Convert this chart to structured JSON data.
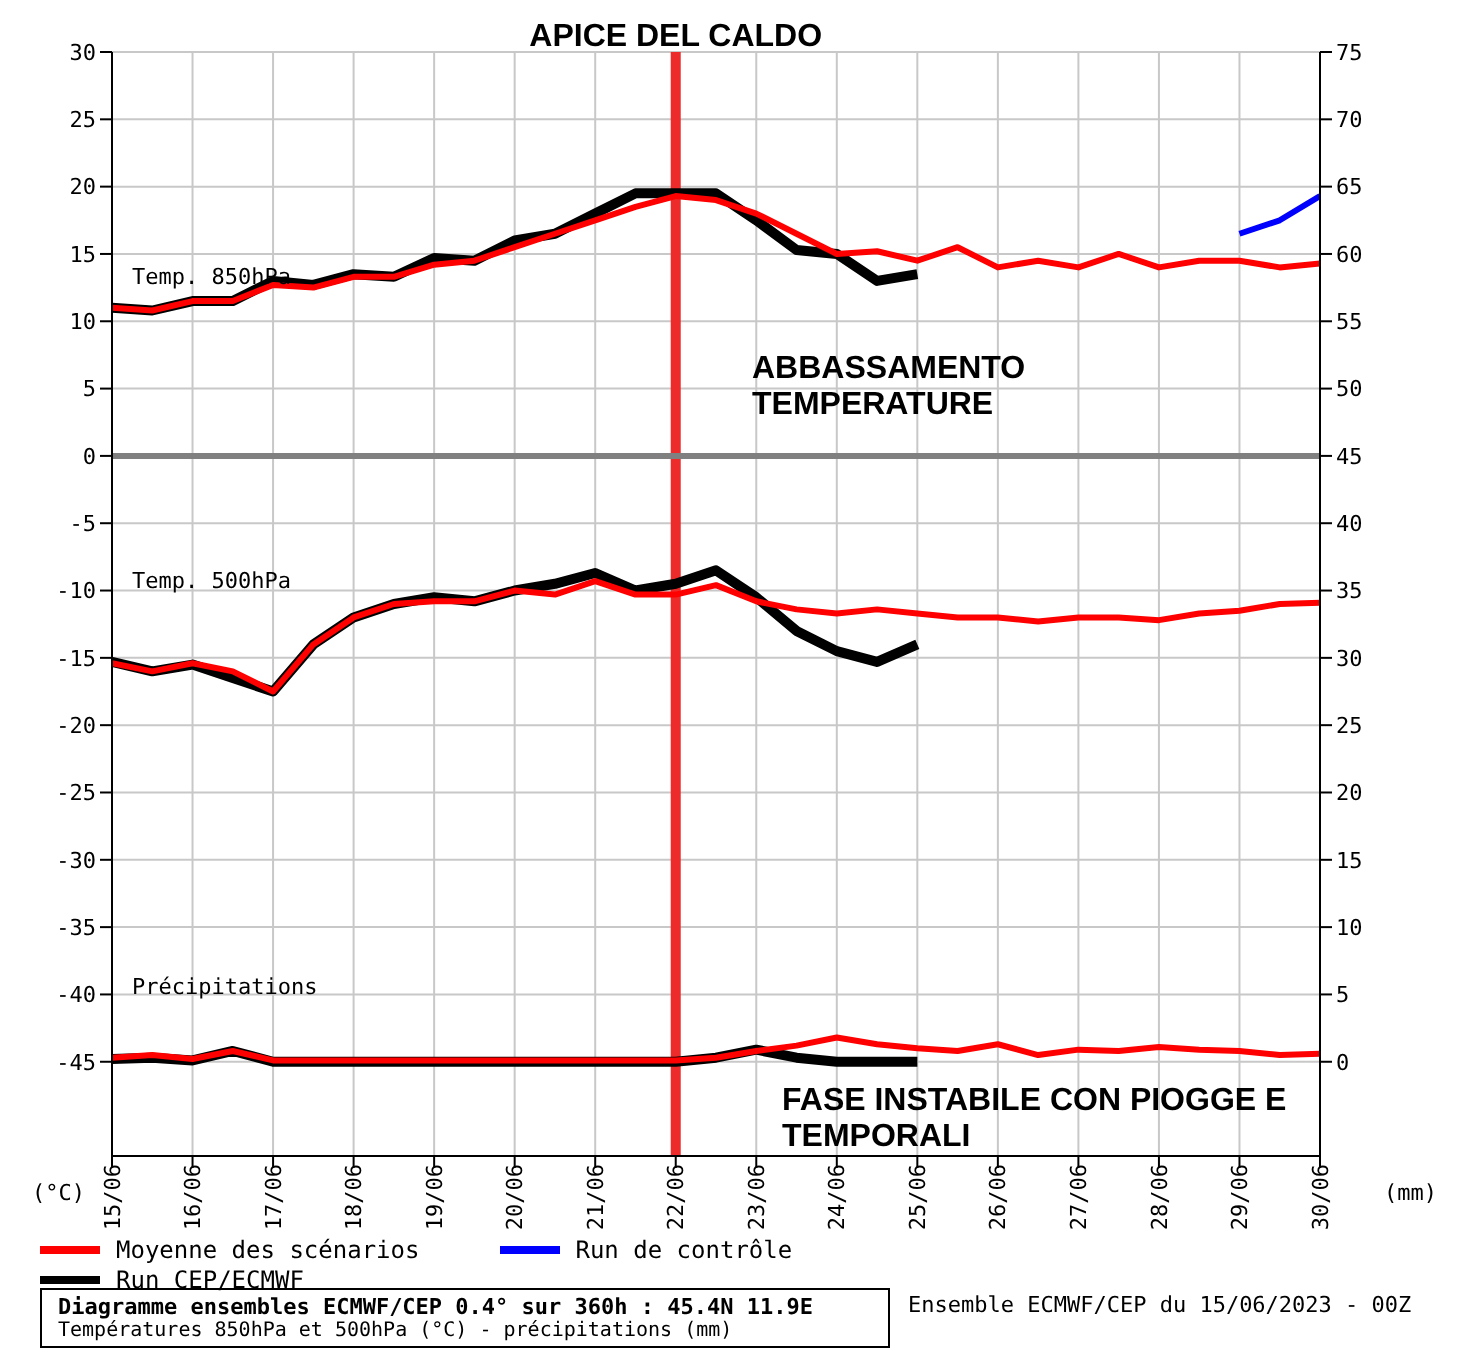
{
  "chart_data": {
    "type": "line",
    "x": [
      "2023-06-15T00:00",
      "2023-06-15T12:00",
      "2023-06-16T00:00",
      "2023-06-16T12:00",
      "2023-06-17T00:00",
      "2023-06-17T12:00",
      "2023-06-18T00:00",
      "2023-06-18T12:00",
      "2023-06-19T00:00",
      "2023-06-19T12:00",
      "2023-06-20T00:00",
      "2023-06-20T12:00",
      "2023-06-21T00:00",
      "2023-06-21T12:00",
      "2023-06-22T00:00",
      "2023-06-22T12:00",
      "2023-06-23T00:00",
      "2023-06-23T12:00",
      "2023-06-24T00:00",
      "2023-06-24T12:00",
      "2023-06-25T00:00",
      "2023-06-25T12:00",
      "2023-06-26T00:00",
      "2023-06-26T12:00",
      "2023-06-27T00:00",
      "2023-06-27T12:00",
      "2023-06-28T00:00",
      "2023-06-28T12:00",
      "2023-06-29T00:00",
      "2023-06-29T12:00",
      "2023-06-30T00:00"
    ],
    "series": [
      {
        "name": "Moyenne des scénarios",
        "color": "#ff0000",
        "values": [
          11,
          10.8,
          11.5,
          11.5,
          12.7,
          12.5,
          13.3,
          13.3,
          14.2,
          14.5,
          15.5,
          16.5,
          17.5,
          18.5,
          19.3,
          19,
          18,
          16.5,
          15,
          15.2,
          14.5,
          15.5,
          14,
          14.5,
          14,
          15,
          14,
          14.5,
          14.5,
          14,
          14.3
        ]
      },
      {
        "name": "Run de contrôle",
        "color": "#0000ff",
        "values": [
          null,
          null,
          null,
          null,
          null,
          null,
          null,
          null,
          null,
          null,
          null,
          null,
          null,
          null,
          null,
          null,
          null,
          null,
          null,
          null,
          null,
          null,
          null,
          null,
          null,
          null,
          null,
          null,
          16.5,
          17.5,
          19.3
        ]
      },
      {
        "name": "Run CEP/ECMWF",
        "color": "#000000",
        "values": [
          11,
          10.8,
          11.5,
          11.5,
          13,
          12.7,
          13.5,
          13.3,
          14.7,
          14.5,
          16,
          16.5,
          18,
          19.5,
          19.5,
          19.5,
          17.5,
          15.3,
          15,
          13,
          13.5,
          null,
          null,
          null,
          null,
          null,
          null,
          null,
          null,
          null,
          null
        ]
      },
      {
        "color": "#ff0000",
        "values": [
          -15.4,
          -16,
          -15.4,
          -16,
          -17.5,
          -14,
          -12,
          -11,
          -10.8,
          -10.8,
          -10,
          -10.3,
          -9.3,
          -10.3,
          -10.3,
          -9.6,
          -10.8,
          -11.4,
          -11.7,
          -11.4,
          -11.7,
          -12,
          -12,
          -12.3,
          -12,
          -12,
          -12.2,
          -11.7,
          -11.5,
          -11,
          -10.9
        ]
      },
      {
        "color": "#000000",
        "values": [
          -15.3,
          -16,
          -15.5,
          -16.5,
          -17.5,
          -14,
          -12,
          -11,
          -10.5,
          -10.8,
          -10,
          -9.5,
          -8.7,
          -10,
          -9.5,
          -8.5,
          -10.5,
          -13,
          -14.5,
          -15.3,
          -14,
          null,
          null,
          null,
          null,
          null,
          null,
          null,
          null,
          null,
          null
        ]
      },
      {
        "color": "#ff0000",
        "axis": "y2",
        "values": [
          0.3,
          0.5,
          0.2,
          0.8,
          0.1,
          0.1,
          0.1,
          0.1,
          0.1,
          0.1,
          0.1,
          0.1,
          0.1,
          0.1,
          0.1,
          0.3,
          0.8,
          1.2,
          1.8,
          1.3,
          1,
          0.8,
          1.3,
          0.5,
          0.9,
          0.8,
          1.1,
          0.9,
          0.8,
          0.5,
          0.6
        ]
      },
      {
        "color": "#000000",
        "axis": "y2",
        "values": [
          0.2,
          0.3,
          0.1,
          0.8,
          0,
          0,
          0,
          0,
          0,
          0,
          0,
          0,
          0,
          0,
          0,
          0.3,
          0.9,
          0.3,
          0,
          0,
          0,
          null,
          null,
          null,
          null,
          null,
          null,
          null,
          null,
          null,
          null
        ]
      }
    ],
    "xlim": [
      "2023-06-15",
      "2023-06-30"
    ],
    "xticks": [
      {
        "value": "2023-06-15",
        "label": "15/06"
      },
      {
        "value": "2023-06-16",
        "label": "16/06"
      },
      {
        "value": "2023-06-17",
        "label": "17/06"
      },
      {
        "value": "2023-06-18",
        "label": "18/06"
      },
      {
        "value": "2023-06-19",
        "label": "19/06"
      },
      {
        "value": "2023-06-20",
        "label": "20/06"
      },
      {
        "value": "2023-06-21",
        "label": "21/06"
      },
      {
        "value": "2023-06-22",
        "label": "22/06"
      },
      {
        "value": "2023-06-23",
        "label": "23/06"
      },
      {
        "value": "2023-06-24",
        "label": "24/06"
      },
      {
        "value": "2023-06-25",
        "label": "25/06"
      },
      {
        "value": "2023-06-26",
        "label": "26/06"
      },
      {
        "value": "2023-06-27",
        "label": "27/06"
      },
      {
        "value": "2023-06-28",
        "label": "28/06"
      },
      {
        "value": "2023-06-29",
        "label": "29/06"
      },
      {
        "value": "2023-06-30",
        "label": "30/06"
      }
    ],
    "ylim": [
      -52,
      30
    ],
    "yticks": [
      -45,
      -40,
      -35,
      -30,
      -25,
      -20,
      -15,
      -10,
      -5,
      0,
      5,
      10,
      15,
      20,
      25,
      30
    ],
    "y2lim": [
      -7,
      75
    ],
    "y2ticks": [
      0,
      5,
      10,
      15,
      20,
      25,
      30,
      35,
      40,
      45,
      50,
      55,
      60,
      65,
      70,
      75
    ],
    "ylabel": "(°C)",
    "y2label": "(mm)",
    "ref_lines": [
      {
        "axis": "x",
        "value": "2023-06-22",
        "label": "APICE DEL CALDO",
        "color": "#ee2b2b"
      },
      {
        "axis": "y",
        "value": 0,
        "color": "#808080"
      }
    ],
    "annotations": [
      "ABBASSAMENTO TEMPERATURE",
      "FASE INSTABILE CON PIOGGE E TEMPORALI",
      "Temp. 850hPa",
      "Temp. 500hPa",
      "Précipitations",
      "Diagramme ensembles ECMWF/CEP 0.4° sur 360h : 45.4N 11.9E",
      "Températures 850hPa et 500hPa (°C) - précipitations (mm)",
      "Ensemble ECMWF/CEP du 15/06/2023 - 00Z"
    ],
    "grid": true,
    "legend": "bottom left",
    "marker": "none",
    "line_style": "solid"
  }
}
